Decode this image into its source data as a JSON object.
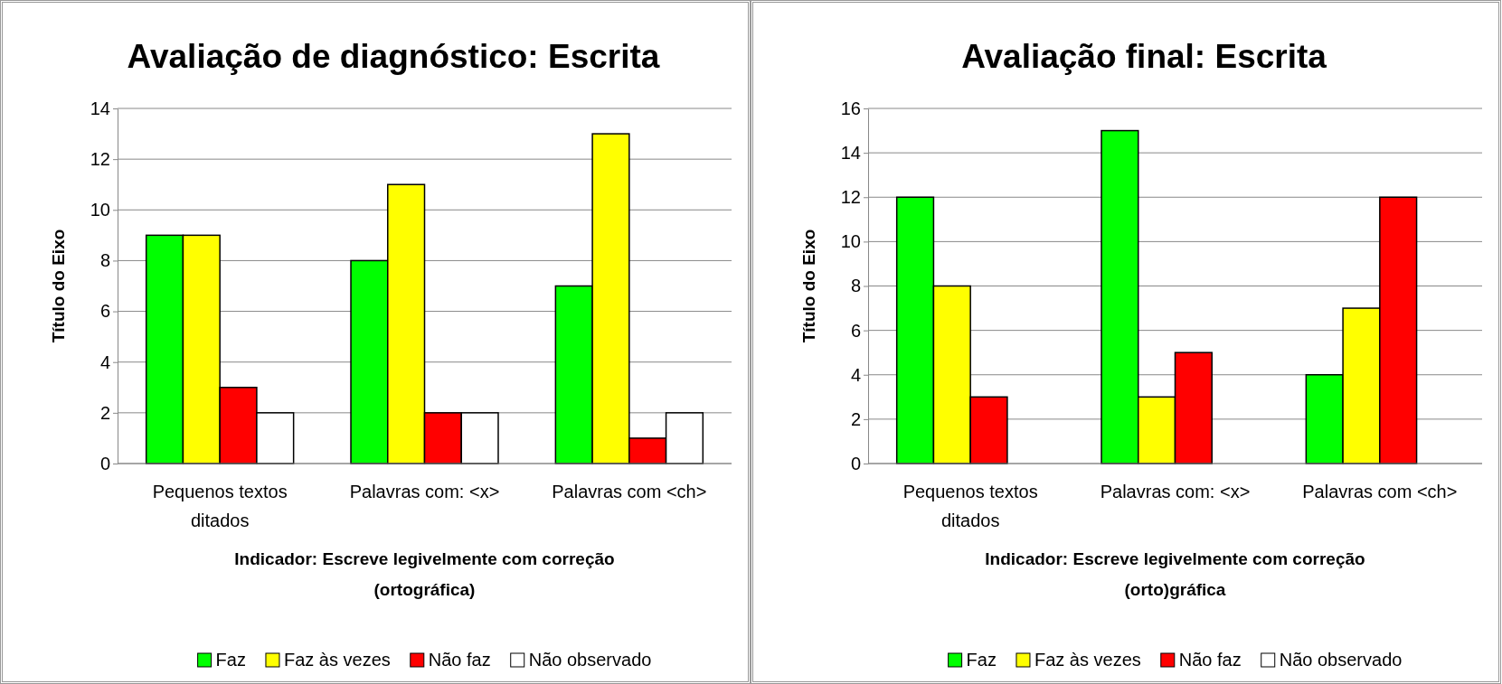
{
  "chart_data": [
    {
      "type": "bar",
      "title": "Avaliação de diagnóstico: Escrita",
      "xlabel": "Indicador: Escreve legivelmente com correção (ortográfica)",
      "ylabel": "Título do Eixo",
      "categories": [
        "Pequenos textos ditados",
        "Palavras com: <x>",
        "Palavras com <ch>"
      ],
      "series": [
        {
          "name": "Faz",
          "color": "#00ff00",
          "values": [
            9,
            8,
            7
          ]
        },
        {
          "name": "Faz às vezes",
          "color": "#ffff00",
          "values": [
            9,
            11,
            13
          ]
        },
        {
          "name": "Não faz",
          "color": "#ff0000",
          "values": [
            3,
            2,
            1
          ]
        },
        {
          "name": "Não observado",
          "color": "#ffffff",
          "values": [
            2,
            2,
            2
          ]
        }
      ],
      "ylim": [
        0,
        14
      ],
      "yticks": [
        0,
        2,
        4,
        6,
        8,
        10,
        12,
        14
      ],
      "grid": "y",
      "legend": "bottom"
    },
    {
      "type": "bar",
      "title": "Avaliação final: Escrita",
      "xlabel": "Indicador: Escreve legivelmente com correção (orto)gráfica",
      "ylabel": "Título do Eixo",
      "categories": [
        "Pequenos textos ditados",
        "Palavras com: <x>",
        "Palavras com <ch>"
      ],
      "series": [
        {
          "name": "Faz",
          "color": "#00ff00",
          "values": [
            12,
            15,
            4
          ]
        },
        {
          "name": "Faz às vezes",
          "color": "#ffff00",
          "values": [
            8,
            3,
            7
          ]
        },
        {
          "name": "Não faz",
          "color": "#ff0000",
          "values": [
            3,
            5,
            12
          ]
        },
        {
          "name": "Não observado",
          "color": "#ffffff",
          "values": [
            0,
            0,
            0
          ]
        }
      ],
      "ylim": [
        0,
        16
      ],
      "yticks": [
        0,
        2,
        4,
        6,
        8,
        10,
        12,
        14,
        16
      ],
      "grid": "y",
      "legend": "bottom"
    }
  ]
}
